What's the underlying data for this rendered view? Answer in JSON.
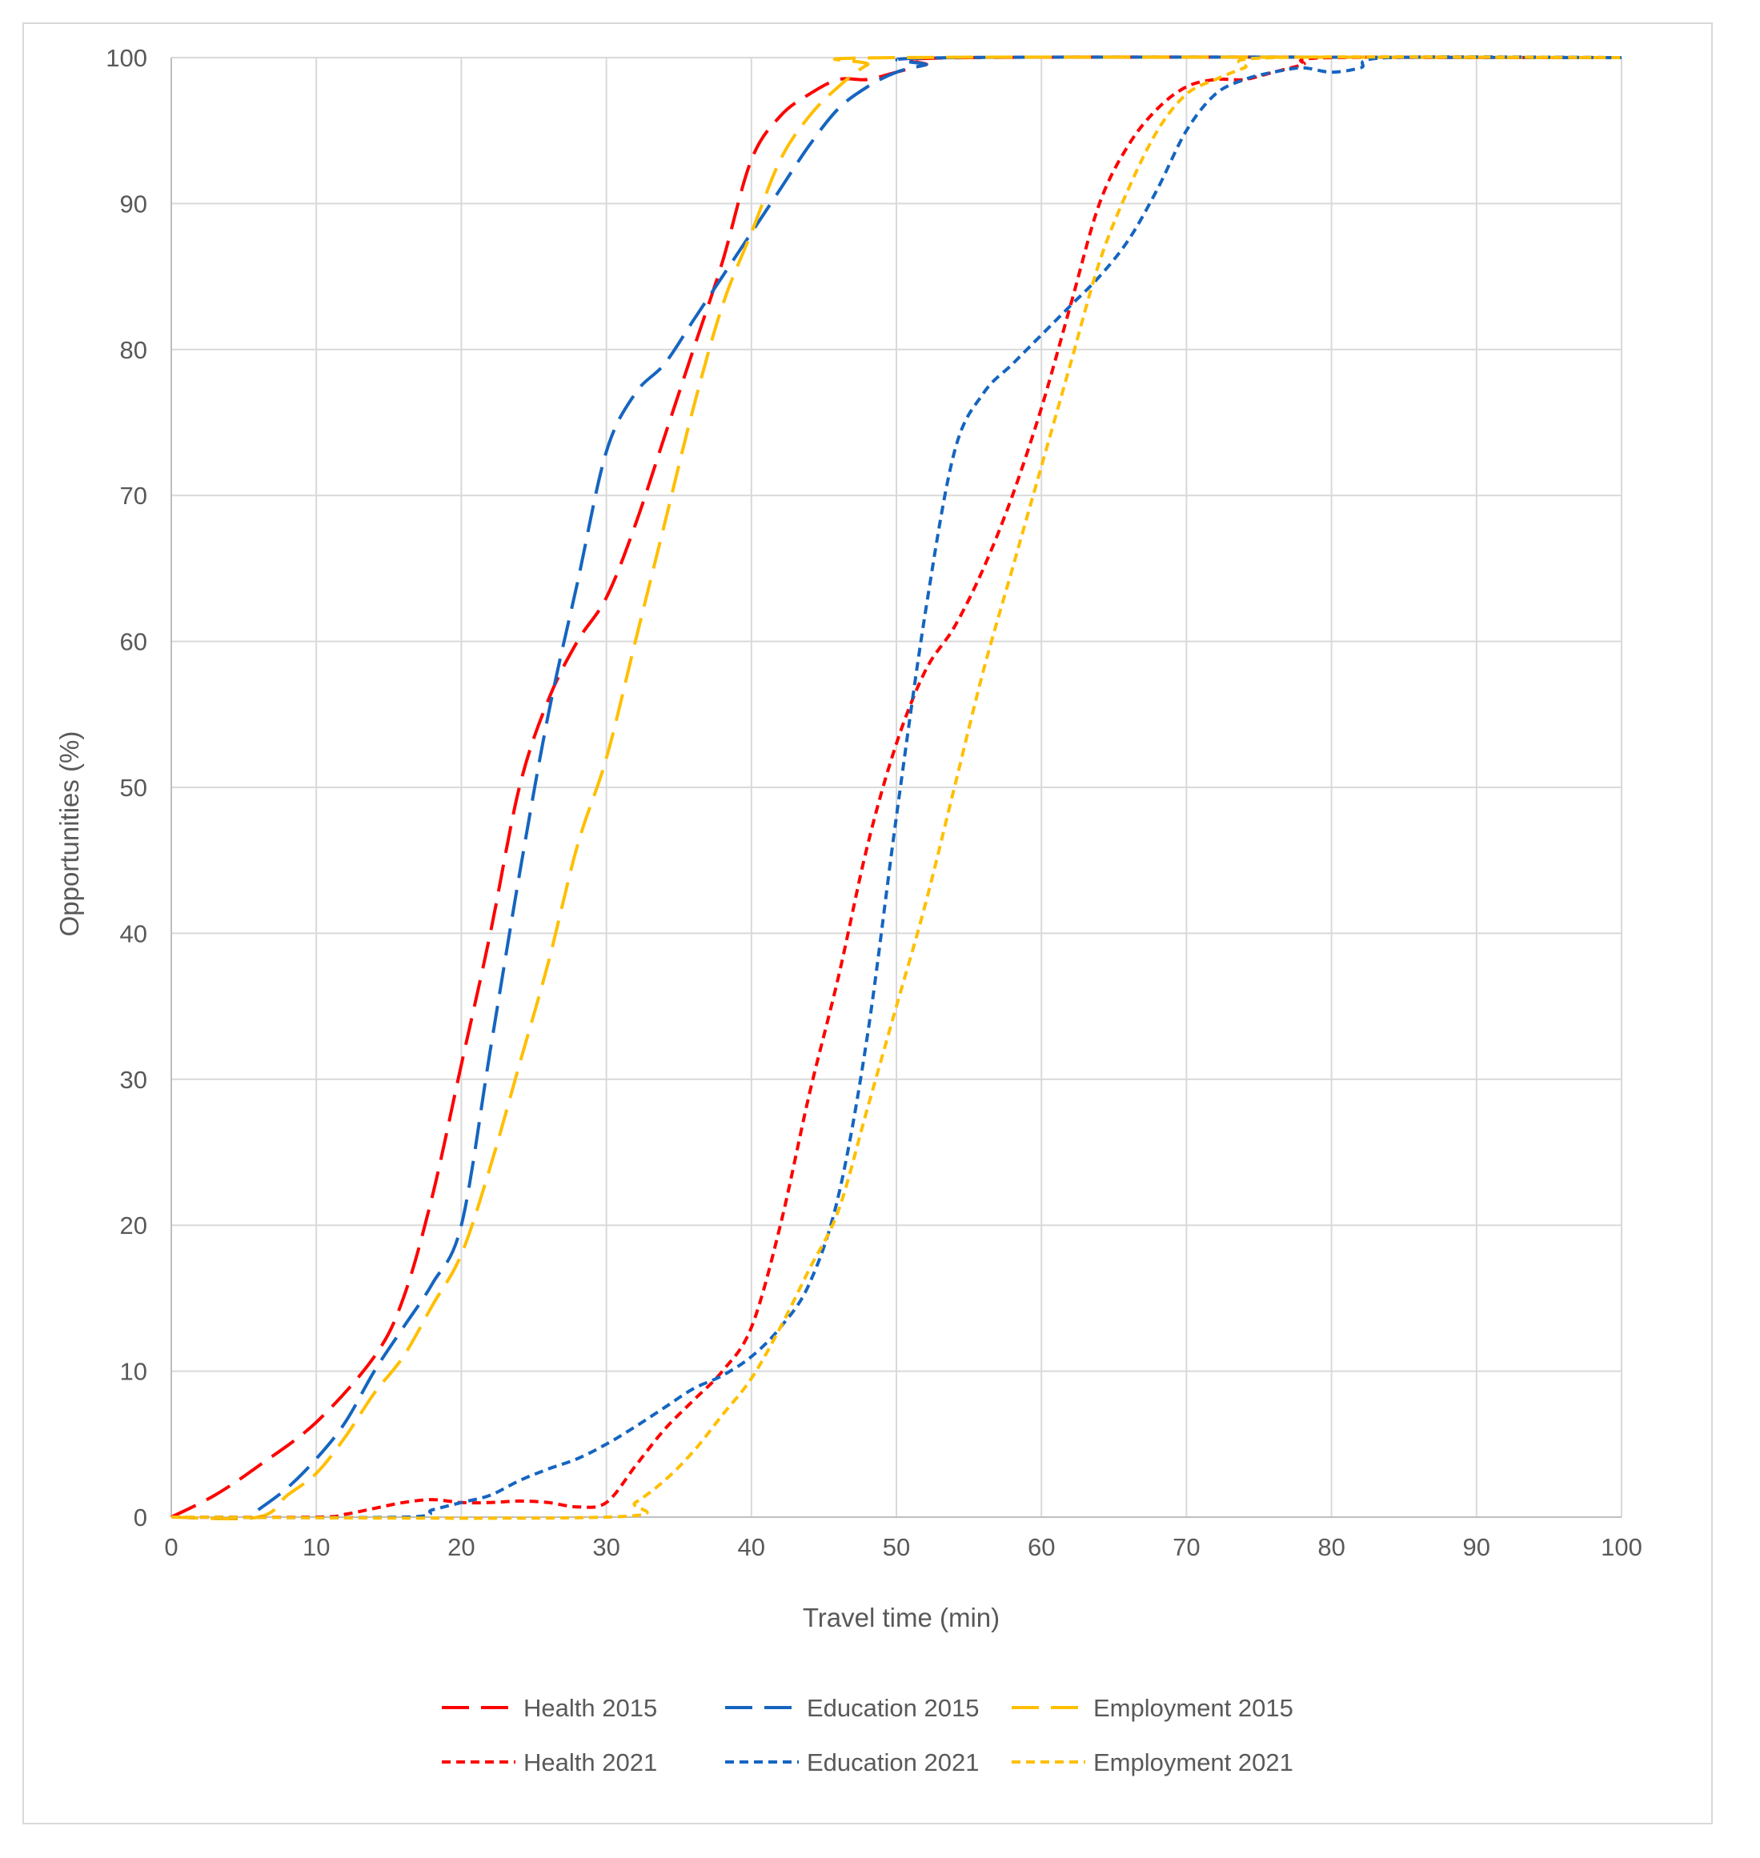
{
  "chart_data": {
    "type": "line",
    "title": "",
    "xlabel": "Travel time (min)",
    "ylabel": "Opportunities  (%)",
    "xlim": [
      0,
      100
    ],
    "ylim": [
      0,
      100
    ],
    "xticks": [
      0,
      10,
      20,
      30,
      40,
      50,
      60,
      70,
      80,
      90,
      100
    ],
    "yticks": [
      0,
      10,
      20,
      30,
      40,
      50,
      60,
      70,
      80,
      90,
      100
    ],
    "grid": true,
    "legend_position": "bottom",
    "series": [
      {
        "name": "Health 2015",
        "color": "#ff0000",
        "style": "long-dash",
        "points": [
          [
            0,
            0
          ],
          [
            3,
            1.5
          ],
          [
            6,
            3.5
          ],
          [
            10,
            6.5
          ],
          [
            14,
            11
          ],
          [
            16,
            15
          ],
          [
            18,
            22
          ],
          [
            20,
            31
          ],
          [
            22,
            40
          ],
          [
            24,
            50
          ],
          [
            26,
            56
          ],
          [
            28,
            60
          ],
          [
            30,
            63
          ],
          [
            32,
            68
          ],
          [
            34,
            74
          ],
          [
            36,
            80
          ],
          [
            38,
            86
          ],
          [
            40,
            93
          ],
          [
            42,
            96
          ],
          [
            44,
            97.5
          ],
          [
            46,
            98.5
          ],
          [
            48,
            98.5
          ],
          [
            50,
            99
          ],
          [
            52,
            99.5
          ],
          [
            55,
            100
          ],
          [
            100,
            100
          ]
        ]
      },
      {
        "name": "Education 2015",
        "color": "#1565c0",
        "style": "long-dash",
        "points": [
          [
            6,
            0.5
          ],
          [
            8,
            2
          ],
          [
            10,
            4
          ],
          [
            12,
            6.5
          ],
          [
            14,
            10
          ],
          [
            16,
            13
          ],
          [
            18,
            16
          ],
          [
            20,
            20
          ],
          [
            22,
            32
          ],
          [
            24,
            44
          ],
          [
            26,
            55
          ],
          [
            28,
            64
          ],
          [
            30,
            73
          ],
          [
            32,
            77
          ],
          [
            34,
            79
          ],
          [
            36,
            82
          ],
          [
            38,
            85
          ],
          [
            40,
            88
          ],
          [
            42,
            91
          ],
          [
            44,
            94
          ],
          [
            46,
            96.5
          ],
          [
            48,
            98
          ],
          [
            50,
            99
          ],
          [
            52,
            99.5
          ],
          [
            54,
            100
          ],
          [
            100,
            100
          ]
        ]
      },
      {
        "name": "Employment 2015",
        "color": "#ffbf00",
        "style": "long-dash",
        "points": [
          [
            0,
            0
          ],
          [
            6,
            0
          ],
          [
            8,
            1.5
          ],
          [
            10,
            3
          ],
          [
            12,
            5.5
          ],
          [
            14,
            8.5
          ],
          [
            16,
            11
          ],
          [
            18,
            14.5
          ],
          [
            20,
            18
          ],
          [
            22,
            24
          ],
          [
            24,
            31
          ],
          [
            26,
            38
          ],
          [
            28,
            46
          ],
          [
            30,
            52
          ],
          [
            32,
            60
          ],
          [
            34,
            68
          ],
          [
            36,
            76
          ],
          [
            38,
            83
          ],
          [
            40,
            88
          ],
          [
            42,
            93
          ],
          [
            44,
            96
          ],
          [
            46,
            98
          ],
          [
            48,
            99.5
          ],
          [
            50,
            100
          ],
          [
            100,
            100
          ]
        ]
      },
      {
        "name": "Health 2021",
        "color": "#ff0000",
        "style": "short-dash",
        "points": [
          [
            0,
            0
          ],
          [
            10,
            0
          ],
          [
            12,
            0.2
          ],
          [
            14,
            0.6
          ],
          [
            16,
            1
          ],
          [
            18,
            1.2
          ],
          [
            20,
            1
          ],
          [
            22,
            1
          ],
          [
            24,
            1.1
          ],
          [
            26,
            1
          ],
          [
            28,
            0.7
          ],
          [
            30,
            1
          ],
          [
            32,
            3.5
          ],
          [
            34,
            6
          ],
          [
            36,
            8
          ],
          [
            38,
            10
          ],
          [
            40,
            13
          ],
          [
            42,
            20
          ],
          [
            44,
            29
          ],
          [
            46,
            37
          ],
          [
            48,
            46
          ],
          [
            50,
            53
          ],
          [
            52,
            58
          ],
          [
            54,
            61
          ],
          [
            56,
            65
          ],
          [
            58,
            70
          ],
          [
            60,
            76
          ],
          [
            62,
            83
          ],
          [
            64,
            90
          ],
          [
            66,
            94
          ],
          [
            68,
            96.5
          ],
          [
            70,
            98
          ],
          [
            72,
            98.5
          ],
          [
            74,
            98.5
          ],
          [
            76,
            99
          ],
          [
            78,
            99.5
          ],
          [
            80,
            100
          ],
          [
            100,
            100
          ]
        ]
      },
      {
        "name": "Education 2021",
        "color": "#1565c0",
        "style": "short-dash",
        "points": [
          [
            0,
            0
          ],
          [
            16,
            0
          ],
          [
            18,
            0.5
          ],
          [
            20,
            1
          ],
          [
            22,
            1.5
          ],
          [
            24,
            2.5
          ],
          [
            26,
            3.3
          ],
          [
            28,
            4
          ],
          [
            30,
            5
          ],
          [
            32,
            6.2
          ],
          [
            34,
            7.5
          ],
          [
            36,
            8.8
          ],
          [
            38,
            9.7
          ],
          [
            40,
            11
          ],
          [
            42,
            13
          ],
          [
            44,
            16
          ],
          [
            46,
            22
          ],
          [
            48,
            33
          ],
          [
            50,
            48
          ],
          [
            52,
            62
          ],
          [
            54,
            73
          ],
          [
            56,
            77
          ],
          [
            58,
            79
          ],
          [
            60,
            81
          ],
          [
            62,
            83
          ],
          [
            64,
            85
          ],
          [
            66,
            87.5
          ],
          [
            68,
            91
          ],
          [
            70,
            95
          ],
          [
            72,
            97.5
          ],
          [
            74,
            98.5
          ],
          [
            76,
            99
          ],
          [
            78,
            99.3
          ],
          [
            80,
            99
          ],
          [
            82,
            99.3
          ],
          [
            84,
            100
          ],
          [
            100,
            100
          ]
        ]
      },
      {
        "name": "Employment 2021",
        "color": "#ffbf00",
        "style": "short-dash",
        "points": [
          [
            0,
            0
          ],
          [
            30,
            0
          ],
          [
            32,
            1
          ],
          [
            34,
            2.5
          ],
          [
            36,
            4.5
          ],
          [
            38,
            7
          ],
          [
            40,
            9.5
          ],
          [
            42,
            13
          ],
          [
            44,
            17
          ],
          [
            46,
            21
          ],
          [
            48,
            28
          ],
          [
            50,
            35
          ],
          [
            52,
            42
          ],
          [
            54,
            50
          ],
          [
            56,
            58
          ],
          [
            58,
            65
          ],
          [
            60,
            72
          ],
          [
            62,
            79
          ],
          [
            64,
            86
          ],
          [
            66,
            91
          ],
          [
            68,
            95
          ],
          [
            70,
            97.5
          ],
          [
            72,
            98.5
          ],
          [
            74,
            99.3
          ],
          [
            76,
            100
          ],
          [
            100,
            100
          ]
        ]
      }
    ]
  }
}
